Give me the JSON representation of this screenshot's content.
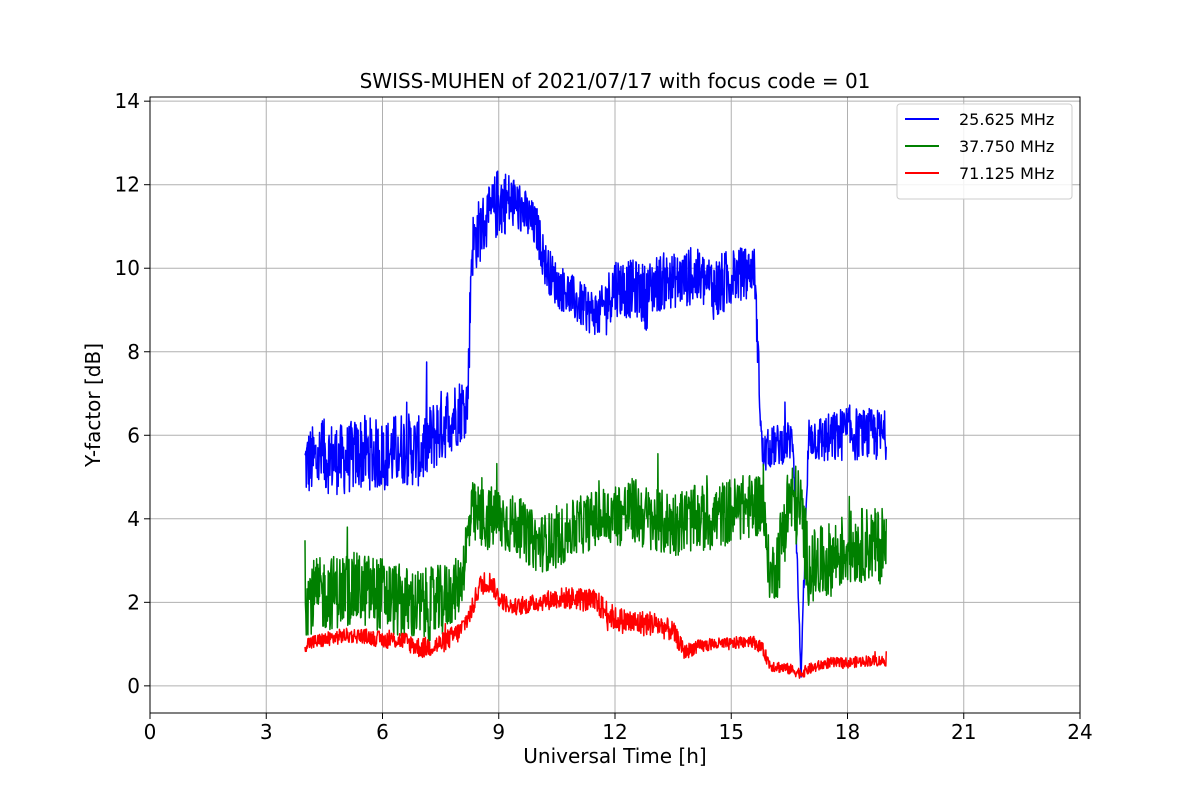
{
  "chart_data": {
    "type": "line",
    "title": "SWISS-MUHEN of 2021/07/17 with focus code = 01",
    "xlabel": "Universal Time [h]",
    "ylabel": "Y-factor [dB]",
    "xlim": [
      0,
      24
    ],
    "ylim": [
      -0.65,
      14.1
    ],
    "xticks": [
      0,
      3,
      6,
      9,
      12,
      15,
      18,
      21,
      24
    ],
    "yticks": [
      0,
      2,
      4,
      6,
      8,
      10,
      12,
      14
    ],
    "grid": true,
    "legend_position": "top-right",
    "series": [
      {
        "name": "25.625 MHz",
        "color": "#0000ff",
        "x": [
          4.0,
          4.5,
          5.0,
          5.5,
          6.0,
          6.5,
          7.0,
          7.5,
          8.0,
          8.2,
          8.3,
          8.5,
          8.8,
          9.0,
          9.3,
          9.6,
          10.0,
          10.2,
          10.5,
          10.8,
          11.0,
          11.3,
          11.6,
          12.0,
          12.3,
          12.6,
          12.8,
          13.0,
          13.3,
          13.6,
          14.0,
          14.3,
          14.6,
          14.8,
          15.0,
          15.3,
          15.6,
          15.8,
          16.0,
          16.3,
          16.6,
          16.8,
          17.0,
          17.3,
          17.6,
          18.0,
          18.3,
          18.6,
          19.0
        ],
        "y": [
          5.3,
          5.5,
          5.4,
          5.6,
          5.5,
          5.7,
          5.6,
          6.2,
          6.6,
          6.8,
          10.5,
          10.9,
          11.3,
          11.6,
          11.6,
          11.4,
          10.9,
          10.1,
          9.6,
          9.4,
          9.2,
          9.0,
          8.9,
          9.6,
          9.5,
          9.5,
          9.3,
          9.6,
          9.7,
          9.7,
          9.8,
          9.7,
          9.5,
          9.6,
          9.8,
          9.9,
          10.0,
          5.5,
          5.7,
          5.8,
          5.9,
          0.2,
          6.0,
          5.9,
          5.9,
          6.1,
          6.0,
          6.0,
          6.0
        ],
        "noise": [
          0.85,
          0.9,
          0.85,
          0.9,
          0.85,
          0.9,
          0.85,
          0.9,
          0.8,
          0.8,
          0.8,
          0.8,
          0.7,
          0.9,
          0.7,
          0.6,
          0.55,
          0.55,
          0.55,
          0.55,
          0.55,
          0.55,
          0.55,
          0.75,
          0.7,
          0.7,
          0.8,
          0.7,
          0.7,
          0.65,
          0.7,
          0.7,
          0.8,
          0.8,
          0.7,
          0.6,
          0.5,
          0.5,
          0.5,
          0.5,
          0.5,
          0.1,
          0.5,
          0.6,
          0.65,
          0.65,
          0.65,
          0.65,
          0.6
        ]
      },
      {
        "name": "37.750 MHz",
        "color": "#008000",
        "x": [
          4.0,
          4.5,
          5.0,
          5.5,
          6.0,
          6.5,
          7.0,
          7.5,
          8.0,
          8.3,
          8.6,
          9.0,
          9.5,
          10.0,
          10.5,
          11.0,
          11.5,
          12.0,
          12.5,
          13.0,
          13.5,
          14.0,
          14.5,
          15.0,
          15.5,
          15.8,
          16.0,
          16.2,
          16.5,
          16.8,
          17.0,
          17.5,
          18.0,
          18.5,
          19.0
        ],
        "y": [
          2.1,
          2.2,
          2.3,
          2.3,
          2.2,
          2.0,
          1.9,
          2.0,
          2.4,
          4.1,
          4.0,
          4.0,
          3.8,
          3.4,
          3.5,
          3.8,
          4.0,
          4.1,
          4.2,
          3.9,
          3.9,
          4.0,
          4.0,
          4.2,
          4.3,
          4.4,
          2.6,
          3.0,
          4.5,
          4.2,
          2.8,
          3.0,
          3.3,
          3.4,
          3.3
        ],
        "noise": [
          0.9,
          0.9,
          0.9,
          0.9,
          0.9,
          0.9,
          0.9,
          0.9,
          0.7,
          0.8,
          0.8,
          0.8,
          0.7,
          0.7,
          0.7,
          0.7,
          0.7,
          0.8,
          0.8,
          0.8,
          0.8,
          0.8,
          0.8,
          0.8,
          0.8,
          0.8,
          0.6,
          0.9,
          1.0,
          1.0,
          0.9,
          0.9,
          0.9,
          0.9,
          0.9
        ]
      },
      {
        "name": "71.125 MHz",
        "color": "#ff0000",
        "x": [
          4.0,
          4.5,
          5.0,
          5.5,
          6.0,
          6.5,
          7.0,
          7.5,
          8.0,
          8.3,
          8.5,
          8.8,
          9.0,
          9.3,
          9.6,
          10.0,
          10.5,
          11.0,
          11.5,
          12.0,
          12.5,
          13.0,
          13.5,
          13.8,
          14.0,
          14.5,
          15.0,
          15.5,
          15.8,
          16.0,
          16.5,
          16.8,
          17.0,
          17.5,
          18.0,
          18.5,
          19.0
        ],
        "y": [
          1.0,
          1.1,
          1.2,
          1.2,
          1.1,
          1.1,
          0.9,
          1.0,
          1.3,
          1.8,
          2.4,
          2.5,
          2.1,
          1.9,
          1.9,
          2.0,
          2.1,
          2.1,
          2.0,
          1.6,
          1.5,
          1.5,
          1.3,
          0.8,
          0.9,
          1.0,
          1.0,
          1.1,
          0.9,
          0.5,
          0.4,
          0.3,
          0.4,
          0.55,
          0.55,
          0.6,
          0.6
        ],
        "noise": [
          0.18,
          0.18,
          0.18,
          0.18,
          0.2,
          0.22,
          0.25,
          0.25,
          0.25,
          0.25,
          0.25,
          0.25,
          0.22,
          0.2,
          0.2,
          0.22,
          0.25,
          0.28,
          0.3,
          0.3,
          0.32,
          0.3,
          0.25,
          0.18,
          0.18,
          0.15,
          0.15,
          0.15,
          0.15,
          0.15,
          0.13,
          0.13,
          0.13,
          0.13,
          0.13,
          0.13,
          0.13
        ]
      }
    ]
  }
}
